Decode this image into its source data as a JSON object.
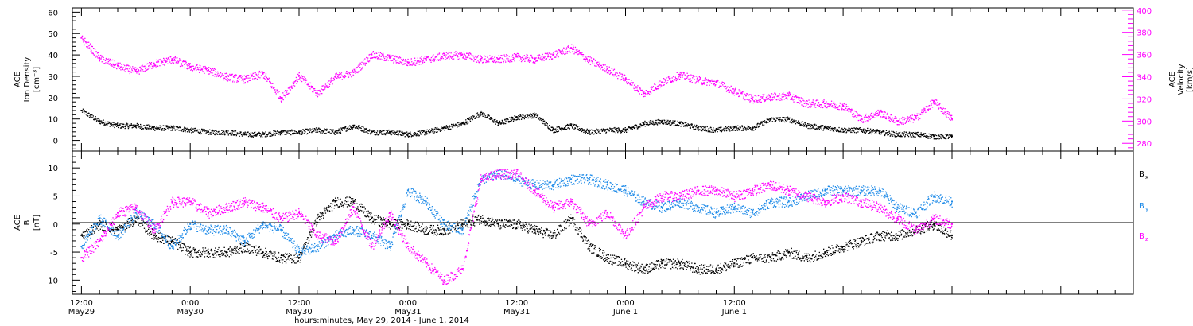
{
  "chart_data": [
    {
      "type": "scatter",
      "panel": "top",
      "left_axis": {
        "label_lines": [
          "ACE",
          "Ion Density",
          "[cm⁻³]"
        ],
        "ylim": [
          -5,
          62
        ],
        "ticks": [
          0,
          10,
          20,
          30,
          40,
          50,
          60
        ],
        "tick_labels": [
          "0",
          "10",
          "20",
          "30",
          "40",
          "50",
          "60"
        ],
        "color": "#000000"
      },
      "right_axis": {
        "label_lines": [
          "ACE",
          "Velocity",
          "[km/s]"
        ],
        "ylim": [
          273,
          402
        ],
        "ticks": [
          280,
          300,
          320,
          340,
          360,
          380,
          400
        ],
        "tick_labels": [
          "280",
          "300",
          "320",
          "340",
          "360",
          "380",
          "400"
        ],
        "color": "#ff00ff"
      },
      "series": [
        {
          "axis": "left",
          "color": "#000000",
          "x": [
            0,
            2,
            4,
            6,
            8,
            10,
            12,
            14,
            16,
            18,
            20,
            22,
            24,
            26,
            28,
            30,
            32,
            34,
            36,
            38,
            40,
            42,
            44,
            46,
            48,
            50,
            52,
            54,
            56,
            58,
            60,
            62,
            64,
            66,
            68,
            70,
            72,
            74,
            76,
            78,
            80,
            82,
            84,
            86,
            88,
            90,
            92,
            94,
            96
          ],
          "y": [
            14,
            9,
            7,
            7,
            6,
            6,
            5,
            4,
            4,
            3,
            3,
            4,
            4,
            5,
            4,
            7,
            4,
            4,
            3,
            4,
            6,
            8,
            13,
            8,
            11,
            12,
            5,
            7,
            4,
            5,
            5,
            8,
            9,
            8,
            6,
            5,
            6,
            6,
            10,
            10,
            7,
            6,
            5,
            5,
            4,
            3,
            3,
            2,
            2
          ]
        },
        {
          "axis": "right",
          "color": "#ff00ff",
          "x": [
            0,
            2,
            4,
            6,
            8,
            10,
            12,
            14,
            16,
            18,
            20,
            22,
            24,
            26,
            28,
            30,
            32,
            34,
            36,
            38,
            40,
            42,
            44,
            46,
            48,
            50,
            52,
            54,
            56,
            58,
            60,
            62,
            64,
            66,
            68,
            70,
            72,
            74,
            76,
            78,
            80,
            82,
            84,
            86,
            88,
            90,
            92,
            94,
            96
          ],
          "y": [
            375,
            357,
            350,
            345,
            352,
            356,
            349,
            346,
            340,
            338,
            343,
            321,
            341,
            325,
            340,
            344,
            360,
            357,
            353,
            356,
            359,
            360,
            356,
            356,
            358,
            356,
            360,
            366,
            355,
            347,
            338,
            325,
            335,
            342,
            337,
            335,
            327,
            320,
            322,
            323,
            316,
            316,
            314,
            302,
            308,
            300,
            303,
            318,
            302
          ]
        }
      ]
    },
    {
      "type": "scatter",
      "panel": "bottom",
      "left_axis": {
        "label_lines": [
          "ACE",
          "B",
          "[nT]"
        ],
        "ylim": [
          -12.5,
          13
        ],
        "ticks": [
          -10,
          -5,
          0,
          5,
          10
        ],
        "tick_labels": [
          "-10",
          "-5",
          "0",
          "5",
          "10"
        ],
        "color": "#000000"
      },
      "zero_line": true,
      "legend": {
        "placement": "right",
        "entries": [
          {
            "label": "B",
            "subscript": "x",
            "color": "#000000"
          },
          {
            "label": "B",
            "subscript": "y",
            "color": "#1f8be8"
          },
          {
            "label": "B",
            "subscript": "z",
            "color": "#ff00ff"
          }
        ]
      },
      "series": [
        {
          "name": "Bx",
          "color": "#000000",
          "x": [
            0,
            2,
            4,
            6,
            8,
            10,
            12,
            14,
            16,
            18,
            20,
            22,
            24,
            26,
            28,
            30,
            32,
            34,
            36,
            38,
            40,
            42,
            44,
            46,
            48,
            50,
            52,
            54,
            56,
            58,
            60,
            62,
            64,
            66,
            68,
            70,
            72,
            74,
            76,
            78,
            80,
            82,
            84,
            86,
            88,
            90,
            92,
            94,
            96
          ],
          "y": [
            -2,
            0,
            -1,
            1,
            -2,
            -3,
            -5,
            -5,
            -5,
            -4,
            -5,
            -6,
            -6,
            1,
            4,
            4,
            1,
            0,
            0,
            -1,
            -1,
            0,
            1,
            0,
            0,
            -1,
            -2,
            1,
            -4,
            -6,
            -7,
            -8,
            -7,
            -7,
            -8,
            -8,
            -7,
            -6,
            -6,
            -5,
            -6,
            -5,
            -4,
            -3,
            -2,
            -2,
            -1,
            0,
            -2
          ]
        },
        {
          "name": "By",
          "color": "#1f8be8",
          "x": [
            0,
            2,
            4,
            6,
            8,
            10,
            12,
            14,
            16,
            18,
            20,
            22,
            24,
            26,
            28,
            30,
            32,
            34,
            36,
            38,
            40,
            42,
            44,
            46,
            48,
            50,
            52,
            54,
            56,
            58,
            60,
            62,
            64,
            66,
            68,
            70,
            72,
            74,
            76,
            78,
            80,
            82,
            84,
            86,
            88,
            90,
            92,
            94,
            96
          ],
          "y": [
            -4,
            1,
            -2,
            2,
            0,
            -4,
            0,
            -1,
            -1,
            -3,
            0,
            -1,
            -5,
            -4,
            -2,
            -1,
            -2,
            -4,
            6,
            4,
            0,
            -1,
            8,
            9,
            8,
            7,
            7,
            8,
            8,
            7,
            6,
            4,
            3,
            4,
            3,
            2,
            3,
            2,
            4,
            4,
            5,
            6,
            6,
            6,
            6,
            3,
            2,
            5,
            4
          ]
        },
        {
          "name": "Bz",
          "color": "#ff00ff",
          "x": [
            0,
            2,
            4,
            6,
            8,
            10,
            12,
            14,
            16,
            18,
            20,
            22,
            24,
            26,
            28,
            30,
            32,
            34,
            36,
            38,
            40,
            42,
            44,
            46,
            48,
            50,
            52,
            54,
            56,
            58,
            60,
            62,
            64,
            66,
            68,
            70,
            72,
            74,
            76,
            78,
            80,
            82,
            84,
            86,
            88,
            90,
            92,
            94,
            96
          ],
          "y": [
            -6,
            -3,
            2,
            3,
            -1,
            4,
            4,
            2,
            3,
            4,
            3,
            1,
            2,
            -2,
            -3,
            3,
            -4,
            2,
            -4,
            -7,
            -10,
            -8,
            8,
            9,
            9,
            6,
            3,
            4,
            0,
            2,
            -2,
            3,
            5,
            5,
            6,
            6,
            5,
            6,
            7,
            6,
            5,
            4,
            5,
            4,
            3,
            1,
            -1,
            1,
            0
          ]
        }
      ]
    }
  ],
  "x_axis": {
    "range_hours": [
      -1,
      116
    ],
    "ticks": [
      {
        "h": 0,
        "time": "12:00",
        "date": "May29"
      },
      {
        "h": 12,
        "time": "0:00",
        "date": "May30"
      },
      {
        "h": 24,
        "time": "12:00",
        "date": "May30"
      },
      {
        "h": 36,
        "time": "0:00",
        "date": "May31"
      },
      {
        "h": 48,
        "time": "12:00",
        "date": "May31"
      },
      {
        "h": 60,
        "time": "0:00",
        "date": "June 1"
      },
      {
        "h": 72,
        "time": "12:00",
        "date": "June 1"
      }
    ],
    "title": "hours:minutes, May 29, 2014 - June  1, 2014"
  }
}
